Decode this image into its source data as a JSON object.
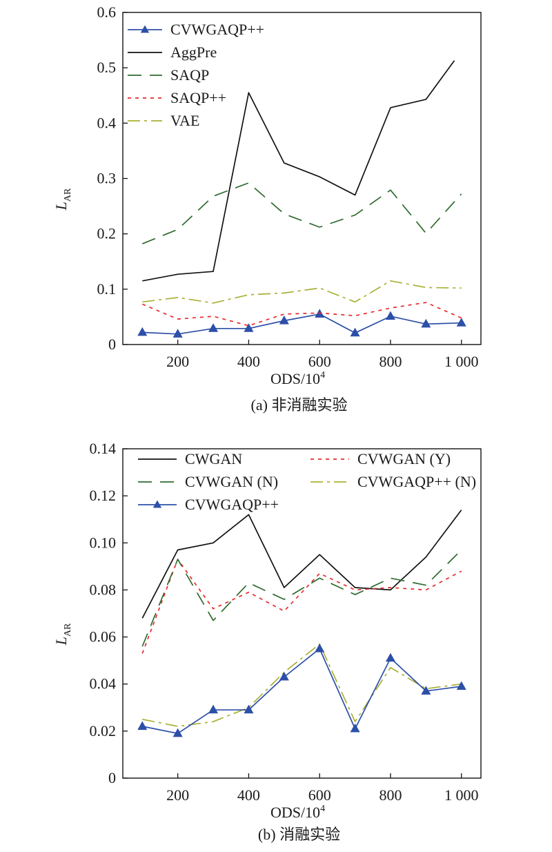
{
  "chart_data": [
    {
      "type": "line",
      "caption": "(a) 非消融实验",
      "xlabel": "ODS/10",
      "xlabel_sup": "4",
      "ylabel": "L",
      "ylabel_sub": "AR",
      "x": [
        100,
        200,
        300,
        400,
        500,
        600,
        700,
        800,
        900,
        1000
      ],
      "xticks": [
        200,
        400,
        600,
        800,
        1000
      ],
      "xtick_labels": [
        "200",
        "400",
        "600",
        "800",
        "1 000"
      ],
      "xlim": [
        45,
        1055
      ],
      "ylim": [
        0,
        0.6
      ],
      "yticks": [
        0,
        0.1,
        0.2,
        0.3,
        0.4,
        0.5,
        0.6
      ],
      "ytick_labels": [
        "0",
        "0.1",
        "0.2",
        "0.3",
        "0.4",
        "0.5",
        "0.6"
      ],
      "legend_position": "top-left",
      "legend_columns": 1,
      "series": [
        {
          "name": "CVWGAQP++",
          "color": "#2c4fa8",
          "dash": "",
          "marker": "triangle",
          "values": [
            0.022,
            0.019,
            0.029,
            0.029,
            0.043,
            0.055,
            0.021,
            0.051,
            0.037,
            0.039
          ]
        },
        {
          "name": "AggPre",
          "color": "#111111",
          "dash": "",
          "x_override": [
            100,
            200,
            300,
            400,
            500,
            600,
            700,
            800,
            900,
            980
          ],
          "values": [
            0.115,
            0.127,
            0.132,
            0.455,
            0.328,
            0.303,
            0.27,
            0.428,
            0.443,
            0.513
          ]
        },
        {
          "name": "SAQP",
          "color": "#2e6b2e",
          "dash": "20,12",
          "marker": "",
          "values": [
            0.182,
            0.208,
            0.268,
            0.292,
            0.236,
            0.212,
            0.234,
            0.279,
            0.201,
            0.272
          ]
        },
        {
          "name": "SAQP++",
          "color": "#e8282a",
          "dash": "5,6",
          "marker": "",
          "values": [
            0.073,
            0.046,
            0.051,
            0.034,
            0.055,
            0.057,
            0.052,
            0.066,
            0.076,
            0.048
          ]
        },
        {
          "name": "VAE",
          "color": "#a9b034",
          "dash": "18,6,4,6",
          "marker": "",
          "values": [
            0.077,
            0.085,
            0.075,
            0.09,
            0.093,
            0.102,
            0.077,
            0.115,
            0.103,
            0.102
          ]
        }
      ]
    },
    {
      "type": "line",
      "caption": "(b) 消融实验",
      "xlabel": "ODS/10",
      "xlabel_sup": "4",
      "ylabel": "L",
      "ylabel_sub": "AR",
      "x": [
        100,
        200,
        300,
        400,
        500,
        600,
        700,
        800,
        900,
        1000
      ],
      "xticks": [
        200,
        400,
        600,
        800,
        1000
      ],
      "xtick_labels": [
        "200",
        "400",
        "600",
        "800",
        "1 000"
      ],
      "xlim": [
        45,
        1055
      ],
      "ylim": [
        0,
        0.14
      ],
      "yticks": [
        0,
        0.02,
        0.04,
        0.06,
        0.08,
        0.1,
        0.12,
        0.14
      ],
      "ytick_labels": [
        "0",
        "0.02",
        "0.04",
        "0.06",
        "0.08",
        "0.10",
        "0.12",
        "0.14"
      ],
      "legend_position": "top",
      "legend_columns": 2,
      "series": [
        {
          "name": "CWGAN",
          "color": "#111111",
          "dash": "",
          "marker": "",
          "values": [
            0.068,
            0.097,
            0.1,
            0.112,
            0.081,
            0.095,
            0.081,
            0.08,
            0.094,
            0.114
          ]
        },
        {
          "name": "CVWGAN (Y)",
          "color": "#e8282a",
          "dash": "5,6",
          "marker": "",
          "values": [
            0.053,
            0.093,
            0.072,
            0.079,
            0.071,
            0.087,
            0.08,
            0.081,
            0.08,
            0.088
          ]
        },
        {
          "name": "CVWGAN (N)",
          "color": "#2e6b2e",
          "dash": "20,12",
          "marker": "",
          "values": [
            0.056,
            0.093,
            0.067,
            0.083,
            0.076,
            0.085,
            0.078,
            0.085,
            0.082,
            0.097
          ]
        },
        {
          "name": "CVWGAQP++ (N)",
          "color": "#a9b034",
          "dash": "18,6,4,6",
          "marker": "",
          "values": [
            0.025,
            0.022,
            0.024,
            0.03,
            0.045,
            0.057,
            0.024,
            0.047,
            0.038,
            0.04
          ]
        },
        {
          "name": "CVWGAQP++",
          "color": "#2c4fa8",
          "dash": "",
          "marker": "triangle",
          "values": [
            0.022,
            0.019,
            0.029,
            0.029,
            0.043,
            0.055,
            0.021,
            0.051,
            0.037,
            0.039
          ]
        }
      ]
    }
  ]
}
